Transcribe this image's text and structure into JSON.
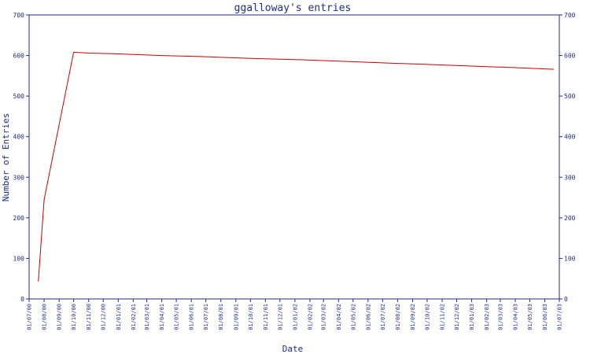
{
  "chart_data": {
    "type": "line",
    "title": "ggalloway's entries",
    "xlabel": "Date",
    "ylabel": "Number of Entries",
    "ylim": [
      0,
      700
    ],
    "yticks": [
      0,
      100,
      200,
      300,
      400,
      500,
      600,
      700
    ],
    "x_tick_labels": [
      "01/07/00",
      "01/08/00",
      "01/09/00",
      "01/10/00",
      "01/11/00",
      "01/12/00",
      "01/01/01",
      "01/02/01",
      "01/03/01",
      "01/04/01",
      "01/05/01",
      "01/06/01",
      "01/07/01",
      "01/08/01",
      "01/09/01",
      "01/10/01",
      "01/11/01",
      "01/12/01",
      "01/01/02",
      "01/02/02",
      "01/03/02",
      "01/04/02",
      "01/05/02",
      "01/06/02",
      "01/07/02",
      "01/08/02",
      "01/09/02",
      "01/10/02",
      "01/11/02",
      "01/12/02",
      "01/01/03",
      "01/02/03",
      "01/03/03",
      "01/04/03",
      "01/05/03",
      "01/06/03",
      "01/07/03"
    ],
    "series": [
      {
        "color": "#cc0000",
        "x": [
          "2000-07-20",
          "2000-08-01",
          "2000-10-01",
          "2000-11-01",
          "2001-01-01",
          "2001-04-01",
          "2001-07-01",
          "2001-10-01",
          "2002-01-01",
          "2002-04-01",
          "2002-07-01",
          "2002-10-01",
          "2003-01-01",
          "2003-04-01",
          "2003-06-20"
        ],
        "y": [
          43,
          245,
          608,
          606,
          604,
          600,
          597,
          593,
          590,
          586,
          582,
          578,
          574,
          570,
          566
        ]
      }
    ],
    "axis_color": "#1f2d8a",
    "right_axis_mirrors_left": true,
    "grid": false,
    "legend": "none"
  }
}
